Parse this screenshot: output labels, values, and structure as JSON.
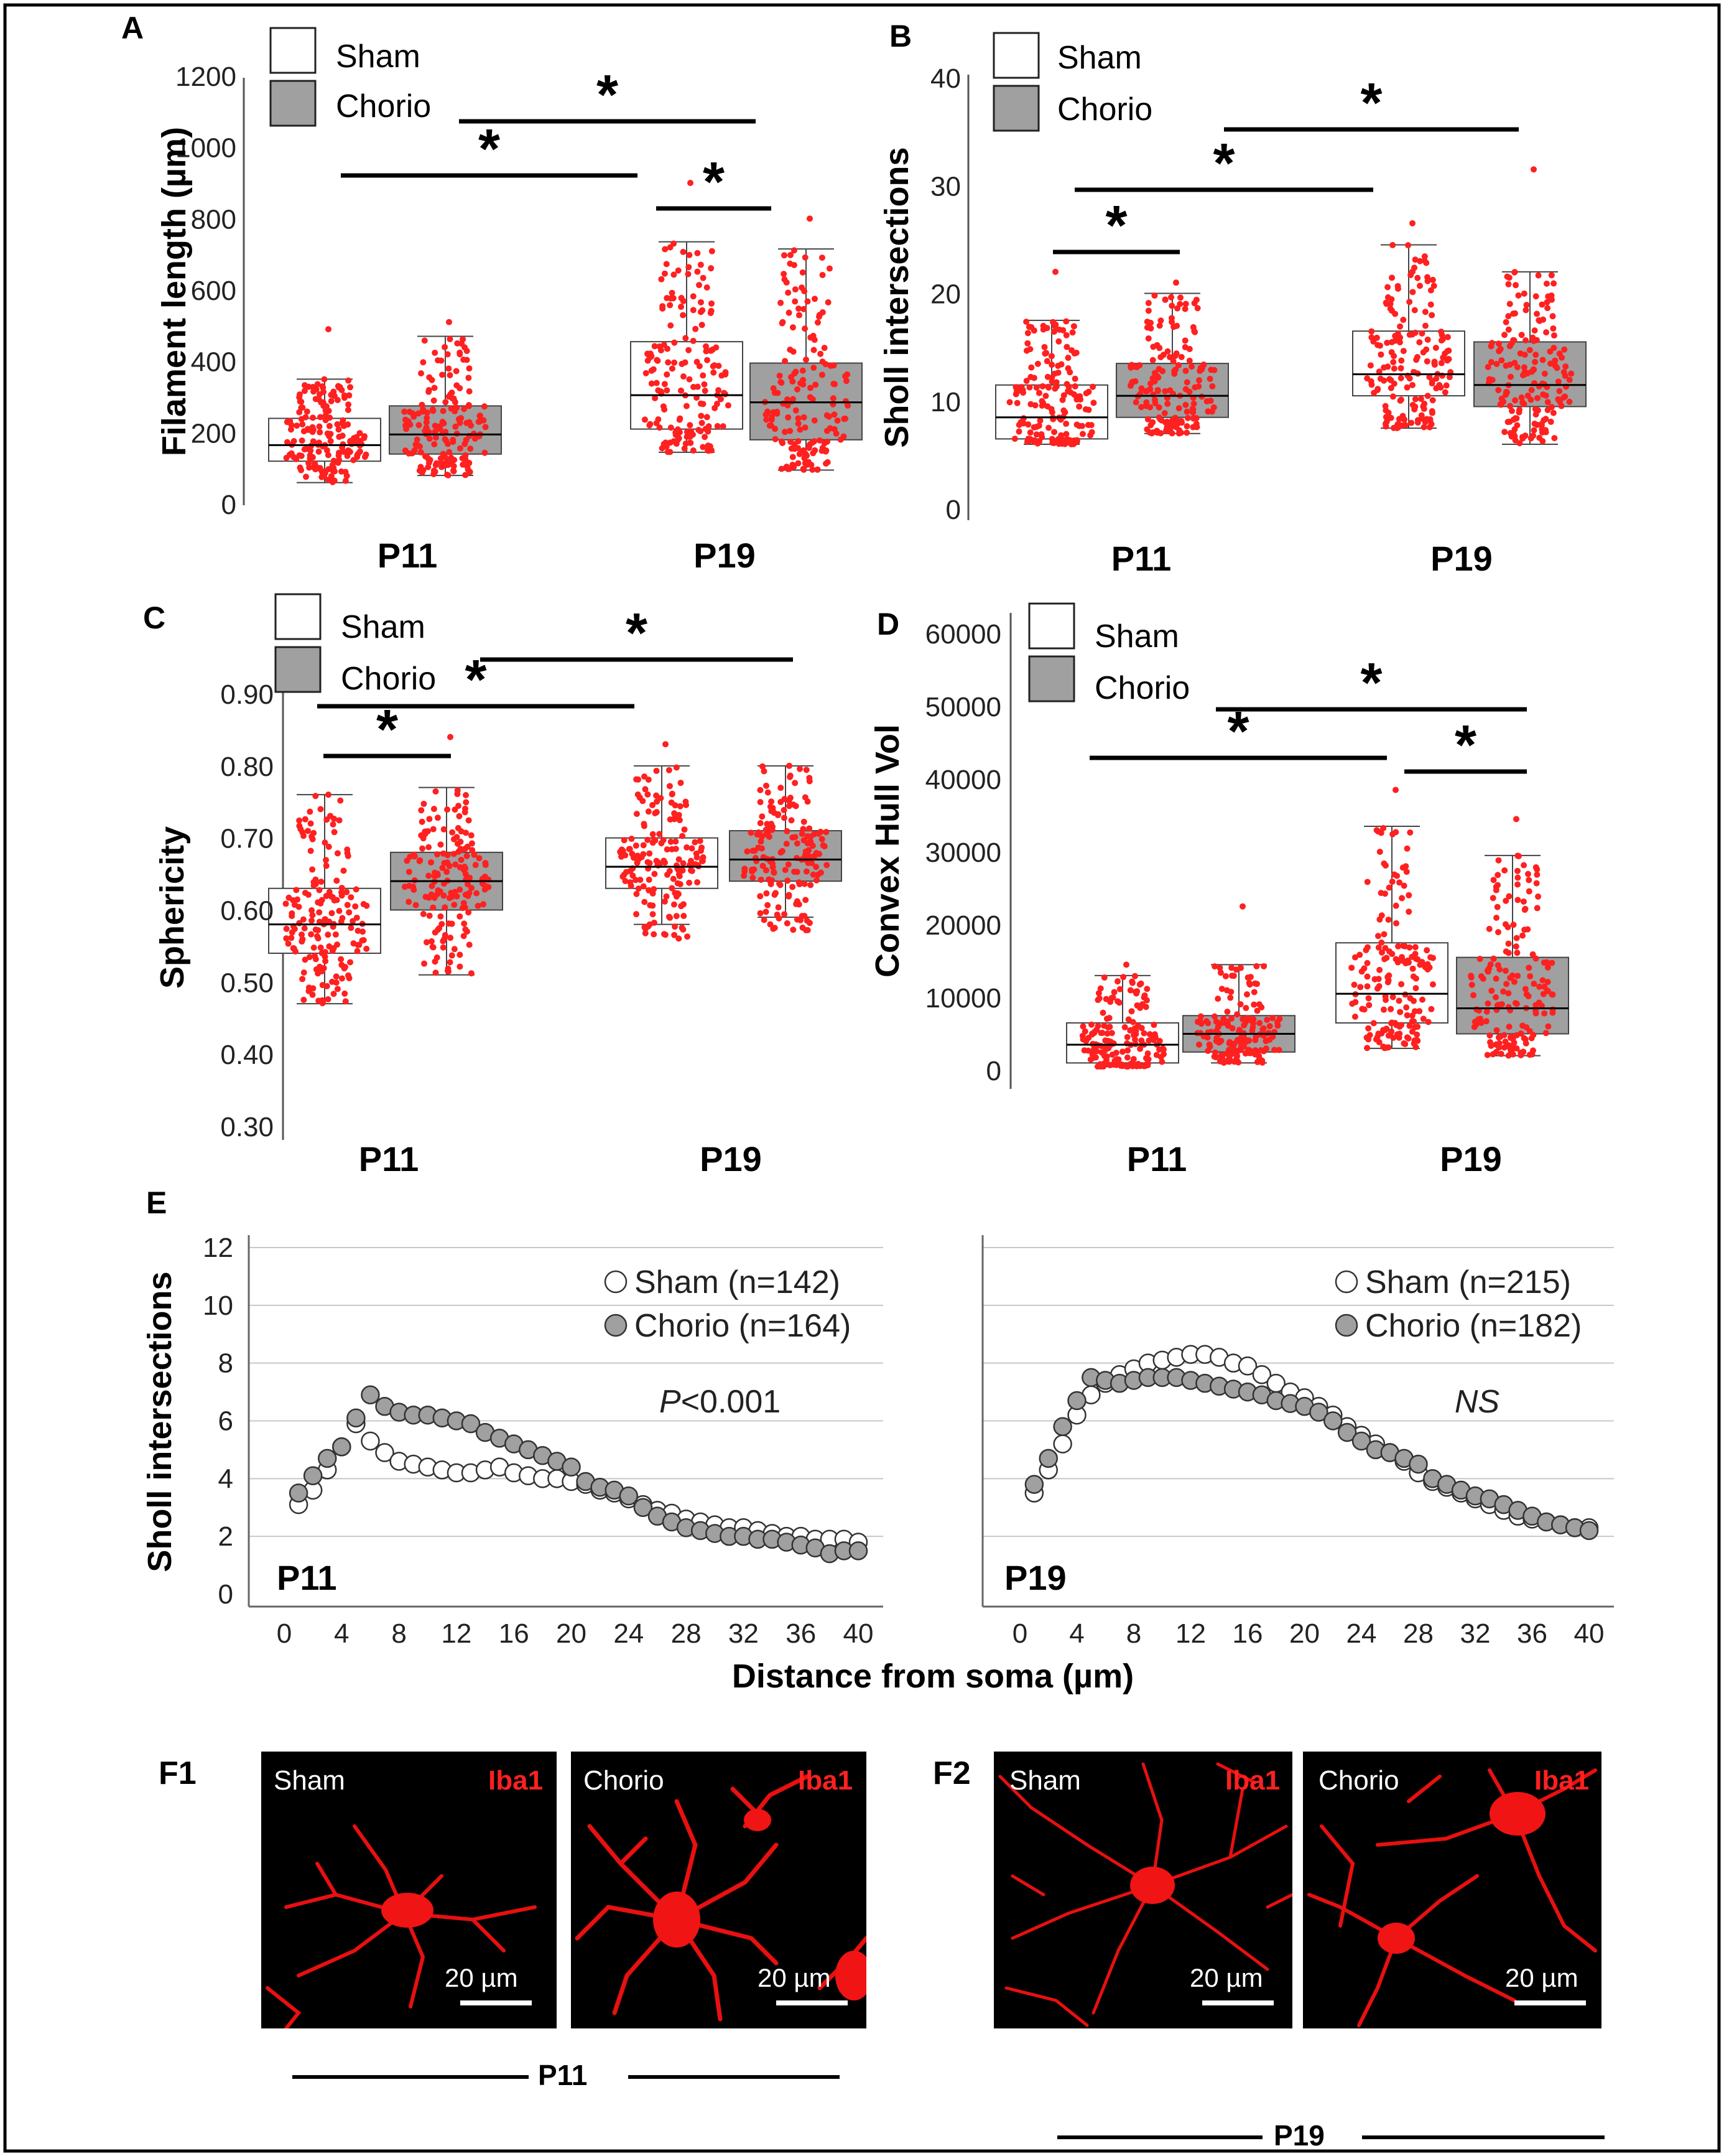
{
  "chart_data": [
    {
      "panel": "A",
      "type": "box",
      "ylabel": "Filament length (µm)",
      "ylim": [
        0,
        1200
      ],
      "yticks": [
        0,
        200,
        400,
        600,
        800,
        1000,
        1200
      ],
      "groups": [
        "P11",
        "P19"
      ],
      "legend": [
        "Sham",
        "Chorio"
      ],
      "boxes": [
        {
          "group": "P11",
          "series": "Sham",
          "min": 60,
          "q1": 120,
          "median": 165,
          "q3": 240,
          "max": 350,
          "top": 490,
          "bottom": 60
        },
        {
          "group": "P11",
          "series": "Chorio",
          "min": 80,
          "q1": 140,
          "median": 195,
          "q3": 275,
          "max": 470,
          "top": 510,
          "bottom": 80
        },
        {
          "group": "P19",
          "series": "Sham",
          "min": 145,
          "q1": 210,
          "median": 305,
          "q3": 455,
          "max": 735,
          "top": 900,
          "bottom": 145
        },
        {
          "group": "P19",
          "series": "Chorio",
          "min": 95,
          "q1": 180,
          "median": 285,
          "q3": 395,
          "max": 715,
          "top": 800,
          "bottom": 95
        }
      ],
      "significance": [
        {
          "from": [
            0,
            0
          ],
          "to": [
            1,
            0
          ],
          "label": "*"
        },
        {
          "from": [
            0,
            1
          ],
          "to": [
            1,
            1
          ],
          "label": "*"
        },
        {
          "from": [
            1,
            0
          ],
          "to": [
            1,
            1
          ],
          "label": "*"
        }
      ]
    },
    {
      "panel": "B",
      "type": "box",
      "ylabel": "Sholl intersections",
      "ylim": [
        0,
        40
      ],
      "yticks": [
        0,
        10,
        20,
        30,
        40
      ],
      "groups": [
        "P11",
        "P19"
      ],
      "legend": [
        "Sham",
        "Chorio"
      ],
      "boxes": [
        {
          "group": "P11",
          "series": "Sham",
          "min": 6,
          "q1": 6.5,
          "median": 8.5,
          "q3": 11.5,
          "max": 17.5,
          "top": 22,
          "bottom": 6
        },
        {
          "group": "P11",
          "series": "Chorio",
          "min": 7,
          "q1": 8.5,
          "median": 10.5,
          "q3": 13.5,
          "max": 20,
          "top": 21,
          "bottom": 7
        },
        {
          "group": "P19",
          "series": "Sham",
          "min": 7.5,
          "q1": 10.5,
          "median": 12.5,
          "q3": 16.5,
          "max": 24.5,
          "top": 26.5,
          "bottom": 7.5
        },
        {
          "group": "P19",
          "series": "Chorio",
          "min": 6,
          "q1": 9.5,
          "median": 11.5,
          "q3": 15.5,
          "max": 22,
          "top": 31.5,
          "bottom": 6
        }
      ],
      "significance": [
        {
          "from": [
            0,
            0
          ],
          "to": [
            0,
            1
          ],
          "label": "*"
        },
        {
          "from": [
            0,
            0
          ],
          "to": [
            1,
            0
          ],
          "label": "*"
        },
        {
          "from": [
            0,
            1
          ],
          "to": [
            1,
            1
          ],
          "label": "*"
        }
      ]
    },
    {
      "panel": "C",
      "type": "box",
      "ylabel": "Sphericity",
      "ylim": [
        0.3,
        0.9
      ],
      "yticks": [
        "0.30",
        "0.40",
        "0.50",
        "0.60",
        "0.70",
        "0.80",
        "0.90"
      ],
      "groups": [
        "P11",
        "P19"
      ],
      "legend": [
        "Sham",
        "Chorio"
      ],
      "boxes": [
        {
          "group": "P11",
          "series": "Sham",
          "min": 0.47,
          "q1": 0.54,
          "median": 0.58,
          "q3": 0.63,
          "max": 0.76,
          "top": 0.76,
          "bottom": 0.47
        },
        {
          "group": "P11",
          "series": "Chorio",
          "min": 0.51,
          "q1": 0.6,
          "median": 0.64,
          "q3": 0.68,
          "max": 0.77,
          "top": 0.84,
          "bottom": 0.51
        },
        {
          "group": "P19",
          "series": "Sham",
          "min": 0.58,
          "q1": 0.63,
          "median": 0.66,
          "q3": 0.7,
          "max": 0.8,
          "top": 0.83,
          "bottom": 0.56
        },
        {
          "group": "P19",
          "series": "Chorio",
          "min": 0.59,
          "q1": 0.64,
          "median": 0.67,
          "q3": 0.71,
          "max": 0.8,
          "top": 0.8,
          "bottom": 0.57
        }
      ],
      "significance": [
        {
          "from": [
            0,
            0
          ],
          "to": [
            0,
            1
          ],
          "label": "*"
        },
        {
          "from": [
            0,
            0
          ],
          "to": [
            1,
            0
          ],
          "label": "*"
        },
        {
          "from": [
            0,
            1
          ],
          "to": [
            1,
            1
          ],
          "label": "*"
        }
      ]
    },
    {
      "panel": "D",
      "type": "box",
      "ylabel": "Convex Hull Vol",
      "ylim": [
        0,
        60000
      ],
      "yticks": [
        0,
        10000,
        20000,
        30000,
        40000,
        50000,
        60000
      ],
      "groups": [
        "P11",
        "P19"
      ],
      "legend": [
        "Sham",
        "Chorio"
      ],
      "boxes": [
        {
          "group": "P11",
          "series": "Sham",
          "min": 500,
          "q1": 1000,
          "median": 3500,
          "q3": 6500,
          "max": 13000,
          "top": 14500,
          "bottom": 500
        },
        {
          "group": "P11",
          "series": "Chorio",
          "min": 1000,
          "q1": 2500,
          "median": 5000,
          "q3": 7500,
          "max": 14500,
          "top": 22500,
          "bottom": 1000
        },
        {
          "group": "P19",
          "series": "Sham",
          "min": 3000,
          "q1": 6500,
          "median": 10500,
          "q3": 17500,
          "max": 33500,
          "top": 38500,
          "bottom": 3000
        },
        {
          "group": "P19",
          "series": "Chorio",
          "min": 2000,
          "q1": 5000,
          "median": 8500,
          "q3": 15500,
          "max": 29500,
          "top": 34500,
          "bottom": 2000
        }
      ],
      "significance": [
        {
          "from": [
            0,
            0
          ],
          "to": [
            1,
            0
          ],
          "label": "*"
        },
        {
          "from": [
            0,
            1
          ],
          "to": [
            1,
            1
          ],
          "label": "*"
        },
        {
          "from": [
            1,
            0
          ],
          "to": [
            1,
            1
          ],
          "label": "*"
        }
      ]
    },
    {
      "panel": "E-P11",
      "type": "scatter",
      "ylabel": "Sholl intersections",
      "xlabel": "Distance from soma (µm)",
      "xlim": [
        0,
        40
      ],
      "ylim": [
        0,
        12
      ],
      "xticks": [
        0,
        4,
        8,
        12,
        16,
        20,
        24,
        28,
        32,
        36,
        40
      ],
      "yticks": [
        0,
        2,
        4,
        6,
        8,
        10,
        12
      ],
      "grid": true,
      "annotation": "P<0.001",
      "panel_label": "P11",
      "series": [
        {
          "name": "Sham (n=142)",
          "fill": "#ffffff",
          "x": [
            1,
            2,
            3,
            4,
            5,
            6,
            7,
            8,
            9,
            10,
            11,
            12,
            13,
            14,
            15,
            16,
            17,
            18,
            19,
            20,
            21,
            22,
            23,
            24,
            25,
            26,
            27,
            28,
            29,
            30,
            31,
            32,
            33,
            34,
            35,
            36,
            37,
            38,
            39,
            40
          ],
          "y": [
            3.1,
            3.6,
            4.3,
            5.1,
            5.9,
            5.3,
            4.9,
            4.6,
            4.5,
            4.4,
            4.3,
            4.2,
            4.2,
            4.3,
            4.4,
            4.2,
            4.1,
            4.0,
            4.0,
            3.9,
            3.8,
            3.6,
            3.5,
            3.3,
            3.1,
            2.9,
            2.8,
            2.6,
            2.5,
            2.4,
            2.3,
            2.3,
            2.2,
            2.1,
            2.0,
            2.0,
            1.9,
            1.9,
            1.9,
            1.8
          ]
        },
        {
          "name": "Chorio (n=164)",
          "fill": "#a0a0a0",
          "x": [
            1,
            2,
            3,
            4,
            5,
            6,
            7,
            8,
            9,
            10,
            11,
            12,
            13,
            14,
            15,
            16,
            17,
            18,
            19,
            20,
            21,
            22,
            23,
            24,
            25,
            26,
            27,
            28,
            29,
            30,
            31,
            32,
            33,
            34,
            35,
            36,
            37,
            38,
            39,
            40
          ],
          "y": [
            3.5,
            4.1,
            4.7,
            5.1,
            6.1,
            6.9,
            6.5,
            6.3,
            6.2,
            6.2,
            6.1,
            6.0,
            5.9,
            5.6,
            5.4,
            5.2,
            5.0,
            4.8,
            4.6,
            4.4,
            3.9,
            3.7,
            3.6,
            3.4,
            3.0,
            2.7,
            2.5,
            2.3,
            2.2,
            2.1,
            2.0,
            2.0,
            1.9,
            1.9,
            1.8,
            1.7,
            1.6,
            1.4,
            1.5,
            1.5
          ]
        }
      ]
    },
    {
      "panel": "E-P19",
      "type": "scatter",
      "xlim": [
        0,
        40
      ],
      "ylim": [
        0,
        12
      ],
      "xticks": [
        0,
        4,
        8,
        12,
        16,
        20,
        24,
        28,
        32,
        36,
        40
      ],
      "grid": true,
      "annotation": "NS",
      "panel_label": "P19",
      "series": [
        {
          "name": "Sham (n=215)",
          "fill": "#ffffff",
          "x": [
            1,
            2,
            3,
            4,
            5,
            6,
            7,
            8,
            9,
            10,
            11,
            12,
            13,
            14,
            15,
            16,
            17,
            18,
            19,
            20,
            21,
            22,
            23,
            24,
            25,
            26,
            27,
            28,
            29,
            30,
            31,
            32,
            33,
            34,
            35,
            36,
            37,
            38,
            39,
            40
          ],
          "y": [
            3.5,
            4.3,
            5.2,
            6.2,
            6.9,
            7.3,
            7.6,
            7.8,
            8.0,
            8.1,
            8.2,
            8.3,
            8.3,
            8.2,
            8.0,
            7.9,
            7.6,
            7.3,
            7.0,
            6.8,
            6.5,
            6.2,
            5.8,
            5.5,
            5.2,
            4.9,
            4.6,
            4.2,
            3.9,
            3.7,
            3.5,
            3.3,
            3.1,
            2.9,
            2.7,
            2.6,
            2.5,
            2.4,
            2.3,
            2.3
          ]
        },
        {
          "name": "Chorio (n=182)",
          "fill": "#a0a0a0",
          "x": [
            1,
            2,
            3,
            4,
            5,
            6,
            7,
            8,
            9,
            10,
            11,
            12,
            13,
            14,
            15,
            16,
            17,
            18,
            19,
            20,
            21,
            22,
            23,
            24,
            25,
            26,
            27,
            28,
            29,
            30,
            31,
            32,
            33,
            34,
            35,
            36,
            37,
            38,
            39,
            40
          ],
          "y": [
            3.8,
            4.7,
            5.8,
            6.7,
            7.5,
            7.4,
            7.3,
            7.4,
            7.5,
            7.5,
            7.5,
            7.4,
            7.3,
            7.2,
            7.1,
            7.0,
            6.9,
            6.7,
            6.6,
            6.5,
            6.3,
            6.0,
            5.6,
            5.3,
            5.0,
            4.9,
            4.7,
            4.5,
            4.0,
            3.8,
            3.6,
            3.4,
            3.3,
            3.1,
            2.9,
            2.7,
            2.5,
            2.4,
            2.3,
            2.2
          ]
        }
      ]
    }
  ],
  "panel_labels": {
    "a": "A",
    "b": "B",
    "c": "C",
    "d": "D",
    "e": "E",
    "f1": "F1",
    "f2": "F2"
  },
  "legend": {
    "sham": "Sham",
    "chorio": "Chorio"
  },
  "groups": {
    "p11": "P11",
    "p19": "P19"
  },
  "star": "*",
  "micro": {
    "sham": "Sham",
    "chorio": "Chorio",
    "stain": "Iba1",
    "scale": "20 µm",
    "group_p11": "P11",
    "group_p19": "P19"
  },
  "colors": {
    "points": "#ff2020",
    "chorio_box": "#a0a0a0",
    "sham_box": "#ffffff",
    "grid": "#c8c8c8"
  }
}
